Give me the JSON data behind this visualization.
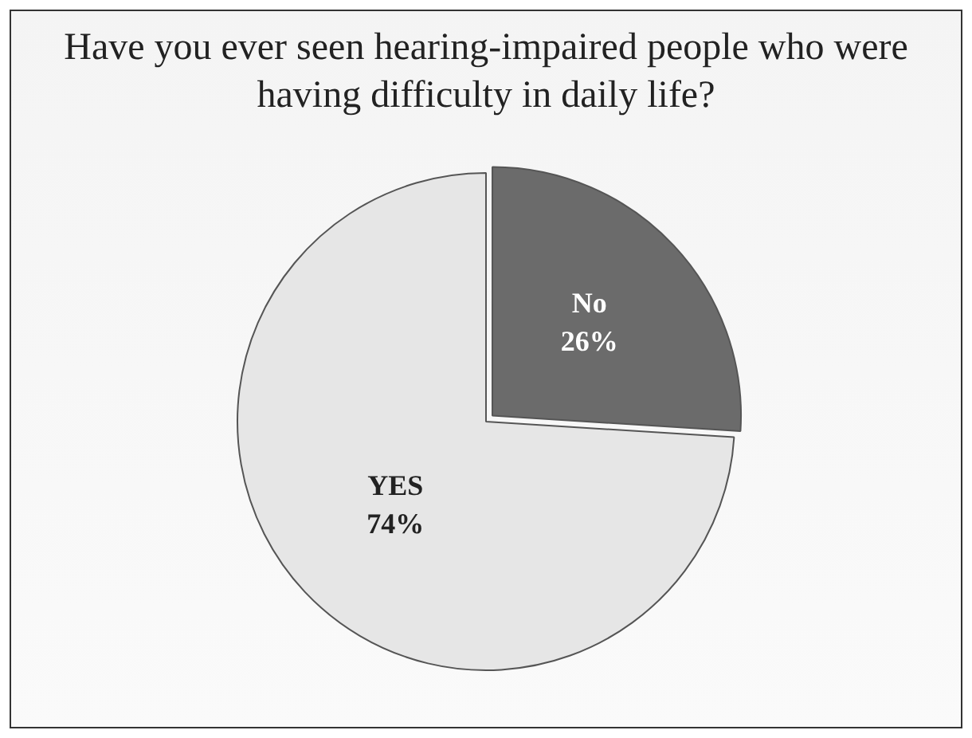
{
  "chart_data": {
    "type": "pie",
    "title": "Have you ever seen hearing-impaired people who were having difficulty in daily life?",
    "categories": [
      "No",
      "YES"
    ],
    "values": [
      26,
      74
    ],
    "colors": [
      "#6b6b6b",
      "#e6e6e6"
    ],
    "value_labels": [
      "26%",
      "74%"
    ],
    "legend": false
  }
}
